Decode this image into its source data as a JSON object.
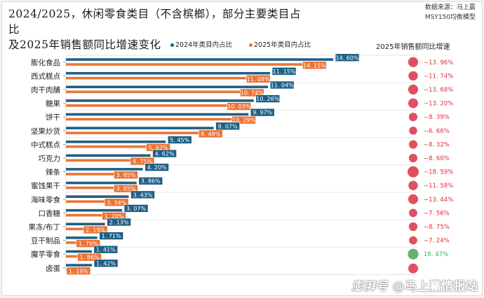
{
  "title": {
    "line1": "2024/2025，休闲零食类目（不含槟榔），部分主要类目占比",
    "line2": "及2025年销售额同比增速变化"
  },
  "source": {
    "line1": "数据来源：马上赢",
    "line2": "MSY150均衡模型"
  },
  "legend": {
    "series_2024": "2024年类目内占比",
    "series_2025": "2025年类目内占比",
    "growth_header": "2025年销售额同比增速"
  },
  "watermark": {
    "brand": "澎湃号",
    "account": "@马上赢情报站"
  },
  "colors": {
    "series_2024": "#1f5f85",
    "series_2025": "#ec7434",
    "negative": "#e05060",
    "positive": "#6aaf72",
    "negative_text": "#d8303c",
    "positive_text": "#2fb55a"
  },
  "chart_data": {
    "type": "bar",
    "orientation": "horizontal",
    "title": "2024/2025，休闲零食类目（不含槟榔），部分主要类目占比及2025年销售额同比增速变化",
    "xlabel": "",
    "ylabel": "",
    "unit": "%",
    "xlim": [
      0,
      16
    ],
    "grid": false,
    "legend_position": "top",
    "categories": [
      "膨化食品",
      "西式糕点",
      "肉干肉脯",
      "糖果",
      "饼干",
      "坚果炒货",
      "中式糕点",
      "巧克力",
      "辣条",
      "蜜饯果干",
      "海味零食",
      "口香糖",
      "果冻/布丁",
      "豆干制品",
      "魔芋零食",
      "卤蛋"
    ],
    "series": [
      {
        "name": "2024年类目内占比",
        "values": [
          14.6,
          11.15,
          11.04,
          10.26,
          9.97,
          8.07,
          5.45,
          4.62,
          4.2,
          3.86,
          3.43,
          3.07,
          2.13,
          1.71,
          1.41,
          1.42
        ]
      },
      {
        "name": "2025年类目内占比",
        "values": [
          14.15,
          11.08,
          10.74,
          10.03,
          10.29,
          8.48,
          5.62,
          4.75,
          3.85,
          3.85,
          3.34,
          3.2,
          2.19,
          1.79,
          1.86,
          1.19
        ]
      }
    ],
    "growth": {
      "name": "2025年销售额同比增速",
      "type": "bubble",
      "values": [
        -13.96,
        -11.74,
        -13.68,
        -13.2,
        -8.39,
        -6.66,
        -8.32,
        -8.6,
        -18.59,
        -11.58,
        -13.44,
        -7.56,
        -8.75,
        -7.24,
        16.47,
        null
      ]
    }
  }
}
